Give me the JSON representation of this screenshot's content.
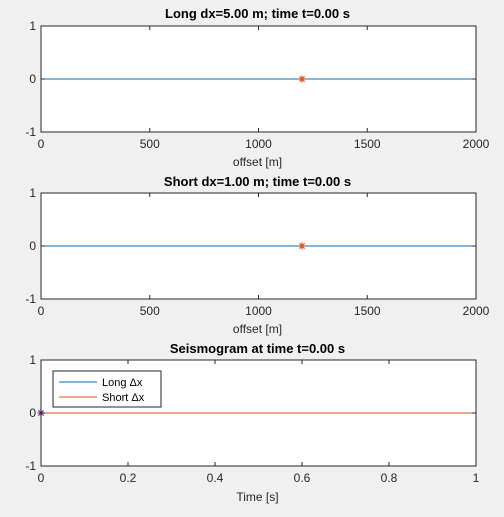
{
  "figure": {
    "background": "#f0f0f0"
  },
  "chart_data": [
    {
      "type": "line",
      "title": "Long dx=5.00 m; time t=0.00 s",
      "xlabel": "offset [m]",
      "ylabel": "",
      "xlim": [
        0,
        2000
      ],
      "ylim": [
        -1,
        1
      ],
      "xticks": [
        0,
        500,
        1000,
        1500,
        2000
      ],
      "yticks": [
        -1,
        0,
        1
      ],
      "series": [
        {
          "x": [
            0,
            2000
          ],
          "y": [
            0,
            0
          ],
          "color": "#0072bd"
        }
      ],
      "markers": [
        {
          "x": 1200,
          "y": 0,
          "symbol": "*",
          "color": "#d95319"
        }
      ]
    },
    {
      "type": "line",
      "title": "Short dx=1.00 m; time t=0.00 s",
      "xlabel": "offset [m]",
      "ylabel": "",
      "xlim": [
        0,
        2000
      ],
      "ylim": [
        -1,
        1
      ],
      "xticks": [
        0,
        500,
        1000,
        1500,
        2000
      ],
      "yticks": [
        -1,
        0,
        1
      ],
      "series": [
        {
          "x": [
            0,
            2000
          ],
          "y": [
            0,
            0
          ],
          "color": "#0072bd"
        }
      ],
      "markers": [
        {
          "x": 1200,
          "y": 0,
          "symbol": "*",
          "color": "#d95319"
        }
      ]
    },
    {
      "type": "line",
      "title": "Seismogram at time t=0.00 s",
      "xlabel": "Time [s]",
      "ylabel": "",
      "xlim": [
        0,
        1
      ],
      "ylim": [
        -1,
        1
      ],
      "xticks": [
        0,
        0.2,
        0.4,
        0.6,
        0.8,
        1
      ],
      "yticks": [
        -1,
        0,
        1
      ],
      "legend": {
        "placement": "top-left"
      },
      "series": [
        {
          "name": "Long Δx",
          "x": [
            0,
            1
          ],
          "y": [
            0,
            0
          ],
          "color": "#0072bd"
        },
        {
          "name": "Short Δx",
          "x": [
            0,
            1
          ],
          "y": [
            0,
            0
          ],
          "color": "#d95319"
        }
      ],
      "markers": [
        {
          "x": 0,
          "y": 0,
          "symbol": "*",
          "color": "#7e2f8e"
        }
      ]
    }
  ]
}
